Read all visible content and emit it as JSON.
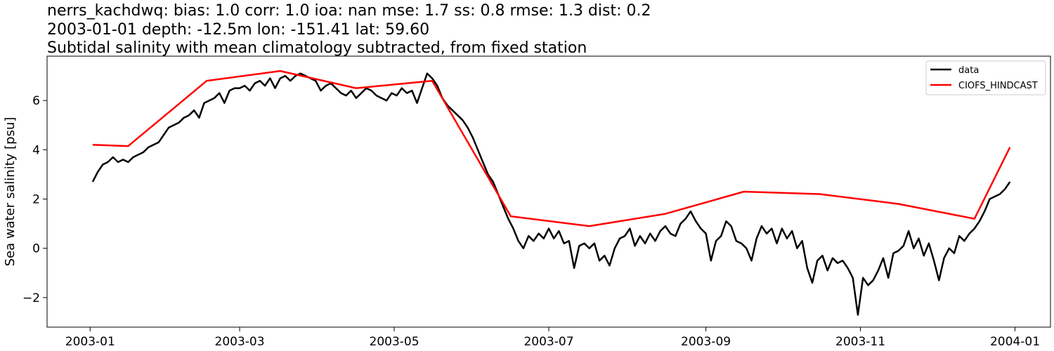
{
  "chart_data": {
    "type": "line",
    "title_lines": [
      "nerrs_kachdwq: bias: 1.0  corr: 1.0  ioa: nan  mse: 1.7  ss: 0.8  rmse: 1.3  dist: 0.2",
      "2003-01-01 depth: -12.5m lon: -151.41 lat: 59.60",
      "Subtidal salinity with mean climatology subtracted, from fixed station"
    ],
    "xlabel": "",
    "ylabel": "Sea water salinity [psu]",
    "xlim": [
      "2002-12-15",
      "2004-01-15"
    ],
    "ylim": [
      -3.2,
      7.8
    ],
    "x_ticks": [
      "2003-01-01",
      "2003-03-01",
      "2003-05-01",
      "2003-07-01",
      "2003-09-01",
      "2003-11-01",
      "2004-01-01"
    ],
    "x_tick_labels": [
      "2003-01",
      "2003-03",
      "2003-05",
      "2003-07",
      "2003-09",
      "2003-11",
      "2004-01"
    ],
    "y_ticks": [
      -2,
      0,
      2,
      4,
      6
    ],
    "y_tick_labels": [
      "−2",
      "0",
      "2",
      "4",
      "6"
    ],
    "grid": false,
    "legend_position": "top-right",
    "series": [
      {
        "name": "data",
        "color": "#000000",
        "points": [
          [
            "2003-01-02",
            2.7
          ],
          [
            "2003-01-04",
            3.1
          ],
          [
            "2003-01-06",
            3.4
          ],
          [
            "2003-01-08",
            3.5
          ],
          [
            "2003-01-10",
            3.7
          ],
          [
            "2003-01-12",
            3.5
          ],
          [
            "2003-01-14",
            3.6
          ],
          [
            "2003-01-16",
            3.5
          ],
          [
            "2003-01-18",
            3.7
          ],
          [
            "2003-01-20",
            3.8
          ],
          [
            "2003-01-22",
            3.9
          ],
          [
            "2003-01-24",
            4.1
          ],
          [
            "2003-01-26",
            4.2
          ],
          [
            "2003-01-28",
            4.3
          ],
          [
            "2003-01-30",
            4.6
          ],
          [
            "2003-02-01",
            4.9
          ],
          [
            "2003-02-03",
            5.0
          ],
          [
            "2003-02-05",
            5.1
          ],
          [
            "2003-02-07",
            5.3
          ],
          [
            "2003-02-09",
            5.4
          ],
          [
            "2003-02-11",
            5.6
          ],
          [
            "2003-02-13",
            5.3
          ],
          [
            "2003-02-15",
            5.9
          ],
          [
            "2003-02-17",
            6.0
          ],
          [
            "2003-02-19",
            6.1
          ],
          [
            "2003-02-21",
            6.3
          ],
          [
            "2003-02-23",
            5.9
          ],
          [
            "2003-02-25",
            6.4
          ],
          [
            "2003-02-27",
            6.5
          ],
          [
            "2003-03-01",
            6.5
          ],
          [
            "2003-03-03",
            6.6
          ],
          [
            "2003-03-05",
            6.4
          ],
          [
            "2003-03-07",
            6.7
          ],
          [
            "2003-03-09",
            6.8
          ],
          [
            "2003-03-11",
            6.6
          ],
          [
            "2003-03-13",
            6.9
          ],
          [
            "2003-03-15",
            6.5
          ],
          [
            "2003-03-17",
            6.9
          ],
          [
            "2003-03-19",
            7.0
          ],
          [
            "2003-03-21",
            6.8
          ],
          [
            "2003-03-23",
            7.0
          ],
          [
            "2003-03-25",
            7.1
          ],
          [
            "2003-03-27",
            7.0
          ],
          [
            "2003-03-29",
            6.9
          ],
          [
            "2003-03-31",
            6.8
          ],
          [
            "2003-04-02",
            6.4
          ],
          [
            "2003-04-04",
            6.6
          ],
          [
            "2003-04-06",
            6.7
          ],
          [
            "2003-04-08",
            6.5
          ],
          [
            "2003-04-10",
            6.3
          ],
          [
            "2003-04-12",
            6.2
          ],
          [
            "2003-04-14",
            6.4
          ],
          [
            "2003-04-16",
            6.1
          ],
          [
            "2003-04-18",
            6.3
          ],
          [
            "2003-04-20",
            6.5
          ],
          [
            "2003-04-22",
            6.4
          ],
          [
            "2003-04-24",
            6.2
          ],
          [
            "2003-04-26",
            6.1
          ],
          [
            "2003-04-28",
            6.0
          ],
          [
            "2003-04-30",
            6.3
          ],
          [
            "2003-05-02",
            6.2
          ],
          [
            "2003-05-04",
            6.5
          ],
          [
            "2003-05-06",
            6.3
          ],
          [
            "2003-05-08",
            6.4
          ],
          [
            "2003-05-10",
            5.9
          ],
          [
            "2003-05-12",
            6.5
          ],
          [
            "2003-05-14",
            7.1
          ],
          [
            "2003-05-16",
            6.9
          ],
          [
            "2003-05-18",
            6.6
          ],
          [
            "2003-05-20",
            6.1
          ],
          [
            "2003-05-22",
            5.8
          ],
          [
            "2003-05-24",
            5.6
          ],
          [
            "2003-05-26",
            5.4
          ],
          [
            "2003-05-28",
            5.2
          ],
          [
            "2003-05-30",
            4.9
          ],
          [
            "2003-06-01",
            4.5
          ],
          [
            "2003-06-03",
            4.0
          ],
          [
            "2003-06-05",
            3.5
          ],
          [
            "2003-06-07",
            3.0
          ],
          [
            "2003-06-09",
            2.7
          ],
          [
            "2003-06-11",
            2.2
          ],
          [
            "2003-06-13",
            1.7
          ],
          [
            "2003-06-15",
            1.2
          ],
          [
            "2003-06-17",
            0.8
          ],
          [
            "2003-06-19",
            0.3
          ],
          [
            "2003-06-21",
            0.0
          ],
          [
            "2003-06-23",
            0.5
          ],
          [
            "2003-06-25",
            0.3
          ],
          [
            "2003-06-27",
            0.6
          ],
          [
            "2003-06-29",
            0.4
          ],
          [
            "2003-07-01",
            0.8
          ],
          [
            "2003-07-03",
            0.4
          ],
          [
            "2003-07-05",
            0.7
          ],
          [
            "2003-07-07",
            0.2
          ],
          [
            "2003-07-09",
            0.3
          ],
          [
            "2003-07-11",
            -0.8
          ],
          [
            "2003-07-13",
            0.1
          ],
          [
            "2003-07-15",
            0.2
          ],
          [
            "2003-07-17",
            0.0
          ],
          [
            "2003-07-19",
            0.2
          ],
          [
            "2003-07-21",
            -0.5
          ],
          [
            "2003-07-23",
            -0.3
          ],
          [
            "2003-07-25",
            -0.7
          ],
          [
            "2003-07-27",
            0.0
          ],
          [
            "2003-07-29",
            0.4
          ],
          [
            "2003-07-31",
            0.5
          ],
          [
            "2003-08-02",
            0.8
          ],
          [
            "2003-08-04",
            0.1
          ],
          [
            "2003-08-06",
            0.5
          ],
          [
            "2003-08-08",
            0.2
          ],
          [
            "2003-08-10",
            0.6
          ],
          [
            "2003-08-12",
            0.3
          ],
          [
            "2003-08-14",
            0.7
          ],
          [
            "2003-08-16",
            0.9
          ],
          [
            "2003-08-18",
            0.6
          ],
          [
            "2003-08-20",
            0.5
          ],
          [
            "2003-08-22",
            1.0
          ],
          [
            "2003-08-24",
            1.2
          ],
          [
            "2003-08-26",
            1.5
          ],
          [
            "2003-08-28",
            1.1
          ],
          [
            "2003-08-30",
            0.8
          ],
          [
            "2003-09-01",
            0.6
          ],
          [
            "2003-09-03",
            -0.5
          ],
          [
            "2003-09-05",
            0.3
          ],
          [
            "2003-09-07",
            0.5
          ],
          [
            "2003-09-09",
            1.1
          ],
          [
            "2003-09-11",
            0.9
          ],
          [
            "2003-09-13",
            0.3
          ],
          [
            "2003-09-15",
            0.2
          ],
          [
            "2003-09-17",
            0.0
          ],
          [
            "2003-09-19",
            -0.5
          ],
          [
            "2003-09-21",
            0.4
          ],
          [
            "2003-09-23",
            0.9
          ],
          [
            "2003-09-25",
            0.6
          ],
          [
            "2003-09-27",
            0.8
          ],
          [
            "2003-09-29",
            0.2
          ],
          [
            "2003-10-01",
            0.8
          ],
          [
            "2003-10-03",
            0.4
          ],
          [
            "2003-10-05",
            0.7
          ],
          [
            "2003-10-07",
            0.0
          ],
          [
            "2003-10-09",
            0.3
          ],
          [
            "2003-10-11",
            -0.8
          ],
          [
            "2003-10-13",
            -1.4
          ],
          [
            "2003-10-15",
            -0.5
          ],
          [
            "2003-10-17",
            -0.3
          ],
          [
            "2003-10-19",
            -0.9
          ],
          [
            "2003-10-21",
            -0.4
          ],
          [
            "2003-10-23",
            -0.6
          ],
          [
            "2003-10-25",
            -0.5
          ],
          [
            "2003-10-27",
            -0.8
          ],
          [
            "2003-10-29",
            -1.2
          ],
          [
            "2003-10-31",
            -2.7
          ],
          [
            "2003-11-02",
            -1.2
          ],
          [
            "2003-11-04",
            -1.5
          ],
          [
            "2003-11-06",
            -1.3
          ],
          [
            "2003-11-08",
            -0.9
          ],
          [
            "2003-11-10",
            -0.4
          ],
          [
            "2003-11-12",
            -1.2
          ],
          [
            "2003-11-14",
            -0.2
          ],
          [
            "2003-11-16",
            -0.1
          ],
          [
            "2003-11-18",
            0.1
          ],
          [
            "2003-11-20",
            0.7
          ],
          [
            "2003-11-22",
            0.0
          ],
          [
            "2003-11-24",
            0.4
          ],
          [
            "2003-11-26",
            -0.3
          ],
          [
            "2003-11-28",
            0.2
          ],
          [
            "2003-11-30",
            -0.5
          ],
          [
            "2003-12-02",
            -1.3
          ],
          [
            "2003-12-04",
            -0.4
          ],
          [
            "2003-12-06",
            0.0
          ],
          [
            "2003-12-08",
            -0.2
          ],
          [
            "2003-12-10",
            0.5
          ],
          [
            "2003-12-12",
            0.3
          ],
          [
            "2003-12-14",
            0.6
          ],
          [
            "2003-12-16",
            0.8
          ],
          [
            "2003-12-18",
            1.1
          ],
          [
            "2003-12-20",
            1.5
          ],
          [
            "2003-12-22",
            2.0
          ],
          [
            "2003-12-24",
            2.1
          ],
          [
            "2003-12-26",
            2.2
          ],
          [
            "2003-12-28",
            2.4
          ],
          [
            "2003-12-30",
            2.7
          ]
        ]
      },
      {
        "name": "CIOFS_HINDCAST",
        "color": "#ff0000",
        "points": [
          [
            "2003-01-02",
            4.2
          ],
          [
            "2003-01-16",
            4.15
          ],
          [
            "2003-02-16",
            6.8
          ],
          [
            "2003-03-17",
            7.2
          ],
          [
            "2003-04-16",
            6.5
          ],
          [
            "2003-05-16",
            6.8
          ],
          [
            "2003-06-16",
            1.3
          ],
          [
            "2003-07-17",
            0.9
          ],
          [
            "2003-08-16",
            1.4
          ],
          [
            "2003-09-16",
            2.3
          ],
          [
            "2003-10-16",
            2.2
          ],
          [
            "2003-11-16",
            1.8
          ],
          [
            "2003-12-16",
            1.2
          ],
          [
            "2003-12-30",
            4.1
          ]
        ]
      }
    ]
  }
}
